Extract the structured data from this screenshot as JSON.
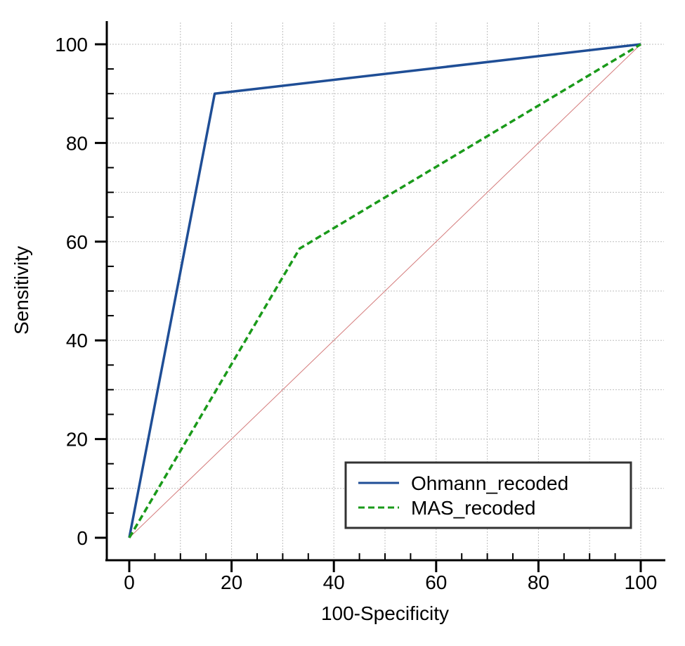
{
  "chart_data": {
    "type": "line",
    "xlabel": "100-Specificity",
    "ylabel": "Sensitivity",
    "xlim": [
      0,
      100
    ],
    "ylim": [
      0,
      100
    ],
    "x_ticks": [
      0,
      20,
      40,
      60,
      80,
      100
    ],
    "y_ticks": [
      0,
      20,
      40,
      60,
      80,
      100
    ],
    "grid": true,
    "legend_position": "bottom-right",
    "series": [
      {
        "name": "Ohmann_recoded",
        "color": "#1f4e96",
        "style": "solid",
        "points": [
          [
            0,
            0
          ],
          [
            16.7,
            90
          ],
          [
            100,
            100
          ]
        ]
      },
      {
        "name": "MAS_recoded",
        "color": "#1a9a1a",
        "style": "dashed",
        "points": [
          [
            0,
            0
          ],
          [
            33.3,
            58.6
          ],
          [
            100,
            100
          ]
        ]
      }
    ],
    "reference_line": {
      "color": "#d47a7a",
      "points": [
        [
          0,
          0
        ],
        [
          100,
          100
        ]
      ]
    }
  }
}
